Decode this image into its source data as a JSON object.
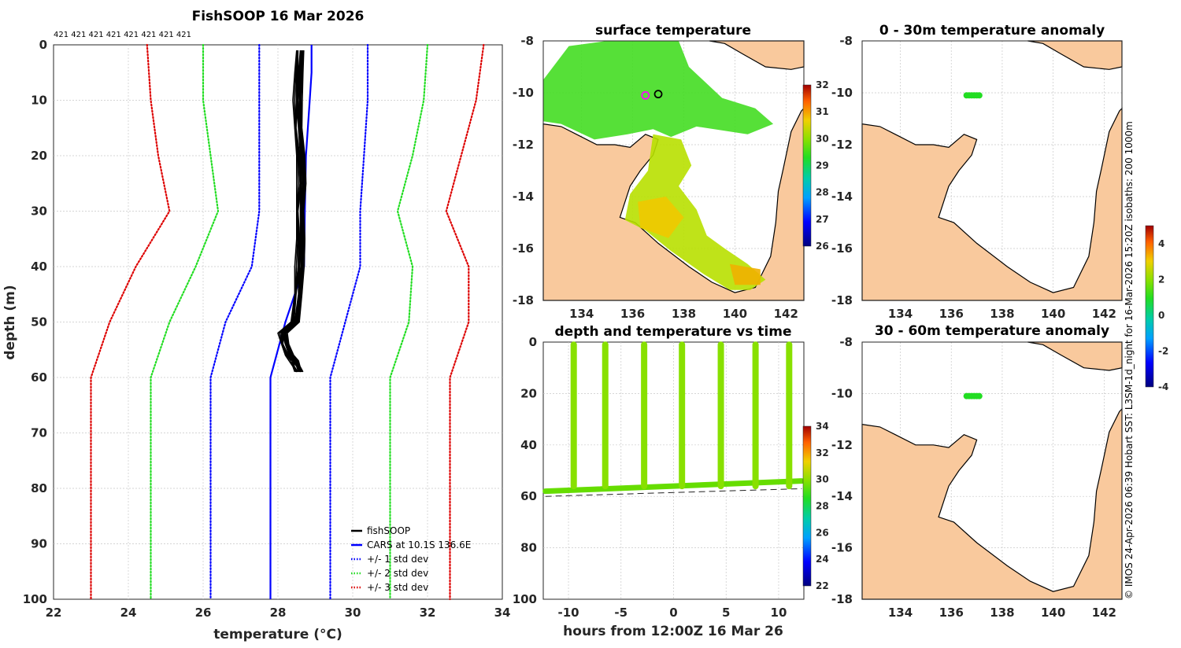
{
  "credit": "© IMOS 24-Apr-2026 06:39 Hobart SST: L3SM-1d_night for 16-Mar-2026 15:20Z isobaths: 200  1000m",
  "colors": {
    "land": "#f9c99d",
    "fishsoop": "#000000",
    "cars": "#0000ff",
    "std1": "#0000ff",
    "std2": "#22dd22",
    "std3": "#dd0000",
    "sst": "#33dd33",
    "coast": "#000000"
  },
  "chart_data": [
    {
      "type": "line",
      "title": "FishSOOP 16 Mar 2026",
      "xlabel": "temperature (°C)",
      "ylabel": "depth (m)",
      "xlim": [
        22,
        34
      ],
      "ylim": [
        100,
        0
      ],
      "x_ticks": [
        "22",
        "24",
        "26",
        "28",
        "30",
        "32",
        "34"
      ],
      "y_ticks": [
        "0",
        "10",
        "20",
        "30",
        "40",
        "50",
        "60",
        "70",
        "80",
        "90",
        "100"
      ],
      "grid": true,
      "legend_position": "bottom-right",
      "top_annotation": "421 421 421 421 421 421 421 421",
      "series": [
        {
          "name": "fishSOOP",
          "style": "solid",
          "color": "#000000",
          "depth": [
            1,
            5,
            10,
            15,
            20,
            25,
            30,
            35,
            40,
            45,
            50,
            52,
            54,
            56,
            57,
            58,
            59
          ],
          "temperature": [
            28.6,
            28.55,
            28.5,
            28.55,
            28.6,
            28.6,
            28.6,
            28.6,
            28.55,
            28.55,
            28.45,
            28.1,
            28.2,
            28.3,
            28.4,
            28.5,
            28.55
          ]
        },
        {
          "name": "CARS at 10.1S 136.6E",
          "style": "solid",
          "color": "#0000ff",
          "depth": [
            0,
            5,
            10,
            20,
            30,
            40,
            50,
            60,
            70,
            80,
            90,
            100
          ],
          "temperature": [
            28.9,
            28.9,
            28.85,
            28.75,
            28.72,
            28.7,
            28.2,
            27.8,
            27.8,
            27.8,
            27.8,
            27.8
          ]
        },
        {
          "name": "+/- 1 std dev",
          "style": "dotted",
          "color": "#0000ff",
          "depth": [
            0,
            10,
            20,
            30,
            40,
            50,
            60,
            70,
            80,
            90,
            100
          ],
          "minus": [
            27.5,
            27.5,
            27.5,
            27.5,
            27.3,
            26.6,
            26.2,
            26.2,
            26.2,
            26.2,
            26.2
          ],
          "plus": [
            30.4,
            30.4,
            30.3,
            30.2,
            30.2,
            29.8,
            29.4,
            29.4,
            29.4,
            29.4,
            29.4
          ]
        },
        {
          "name": "+/- 2 std dev",
          "style": "dotted",
          "color": "#22dd22",
          "depth": [
            0,
            10,
            20,
            30,
            40,
            50,
            60,
            70,
            80,
            90,
            100
          ],
          "minus": [
            26.0,
            26.0,
            26.2,
            26.4,
            25.8,
            25.1,
            24.6,
            24.6,
            24.6,
            24.6,
            24.6
          ],
          "plus": [
            32.0,
            31.9,
            31.6,
            31.2,
            31.6,
            31.5,
            31.0,
            31.0,
            31.0,
            31.0,
            31.0
          ]
        },
        {
          "name": "+/- 3 std dev",
          "style": "dotted",
          "color": "#dd0000",
          "depth": [
            0,
            10,
            20,
            30,
            40,
            50,
            60,
            70,
            80,
            90,
            100
          ],
          "minus": [
            24.5,
            24.6,
            24.8,
            25.1,
            24.2,
            23.5,
            23.0,
            23.0,
            23.0,
            23.0,
            23.0
          ],
          "plus": [
            33.5,
            33.3,
            32.9,
            32.5,
            33.1,
            33.1,
            32.6,
            32.6,
            32.6,
            32.6,
            32.6
          ]
        }
      ]
    },
    {
      "type": "heatmap",
      "title": "surface temperature",
      "xlim": [
        132.5,
        142.7
      ],
      "ylim": [
        -18,
        -8
      ],
      "x_ticks": [
        "134",
        "136",
        "138",
        "140",
        "142"
      ],
      "y_ticks": [
        "-8",
        "-10",
        "-12",
        "-14",
        "-16",
        "-18"
      ],
      "colorbar": {
        "min": 26,
        "max": 32,
        "ticks": [
          "32",
          "31",
          "30",
          "29",
          "28",
          "27",
          "26"
        ]
      },
      "markers": [
        {
          "lon": 136.5,
          "lat": -10.1,
          "color": "#ff00ff"
        },
        {
          "lon": 137.0,
          "lat": -10.05,
          "color": "#000000"
        }
      ]
    },
    {
      "type": "scatter",
      "title": "depth and temperature vs time",
      "xlabel": "hours from 12:00Z 16 Mar 26",
      "xlim": [
        -12.4,
        12.4
      ],
      "ylim": [
        100,
        0
      ],
      "x_ticks": [
        "-10",
        "-5",
        "0",
        "5",
        "10"
      ],
      "y_ticks": [
        "0",
        "20",
        "40",
        "60",
        "80",
        "100"
      ],
      "colorbar": {
        "min": 22,
        "max": 34,
        "ticks": [
          "34",
          "32",
          "30",
          "28",
          "26",
          "24",
          "22"
        ]
      },
      "profiles_hours": [
        -9.5,
        -6.5,
        -2.8,
        0.8,
        4.5,
        7.8,
        11.0
      ],
      "bottom_depth": 56,
      "value_range_c": [
        28.5,
        29.5
      ]
    },
    {
      "type": "heatmap",
      "title": "0 - 30m temperature anomaly",
      "xlim": [
        132.5,
        142.7
      ],
      "ylim": [
        -18,
        -8
      ],
      "x_ticks": [
        "134",
        "136",
        "138",
        "140",
        "142"
      ],
      "y_ticks": [
        "-8",
        "-10",
        "-12",
        "-14",
        "-16",
        "-18"
      ],
      "points": {
        "lon_range": [
          136.6,
          137.1
        ],
        "lat": -10.1,
        "anomaly": 0.2
      }
    },
    {
      "type": "heatmap",
      "title": "30 - 60m temperature anomaly",
      "xlim": [
        132.5,
        142.7
      ],
      "ylim": [
        -18,
        -8
      ],
      "x_ticks": [
        "134",
        "136",
        "138",
        "140",
        "142"
      ],
      "y_ticks": [
        "-8",
        "-10",
        "-12",
        "-14",
        "-16",
        "-18"
      ],
      "points": {
        "lon_range": [
          136.6,
          137.1
        ],
        "lat": -10.1,
        "anomaly": 0.2
      },
      "colorbar": {
        "min": -4,
        "max": 5,
        "ticks": [
          "4",
          "2",
          "0",
          "-2",
          "-4"
        ]
      }
    }
  ]
}
